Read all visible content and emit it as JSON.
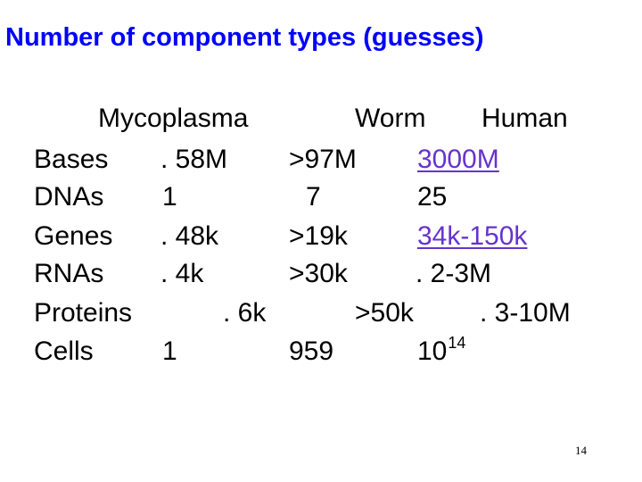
{
  "title": "Number of component types (guesses)",
  "columns": {
    "mycoplasma": "Mycoplasma",
    "worm": "Worm",
    "human": "Human"
  },
  "rows": {
    "bases": {
      "label": "Bases",
      "mycoplasma": ". 58M",
      "worm": ">97M",
      "human": "3000M"
    },
    "dnas": {
      "label": "DNAs",
      "mycoplasma": "1",
      "worm": "7",
      "human": "25"
    },
    "genes": {
      "label": "Genes",
      "mycoplasma": ". 48k",
      "worm": ">19k",
      "human": "34k-150k"
    },
    "rnas": {
      "label": "RNAs",
      "mycoplasma": ". 4k",
      "worm": ">30k",
      "human": ". 2-3M"
    },
    "proteins": {
      "label": "Proteins",
      "mycoplasma": ". 6k",
      "worm": ">50k",
      "human": ". 3-10M"
    },
    "cells": {
      "label": "Cells",
      "mycoplasma": "1",
      "worm": "959",
      "human_base": "10",
      "human_exp": "14"
    }
  },
  "colors": {
    "title": "#0000ff",
    "link": "#6633cc",
    "text": "#000000"
  },
  "page_number": "14"
}
